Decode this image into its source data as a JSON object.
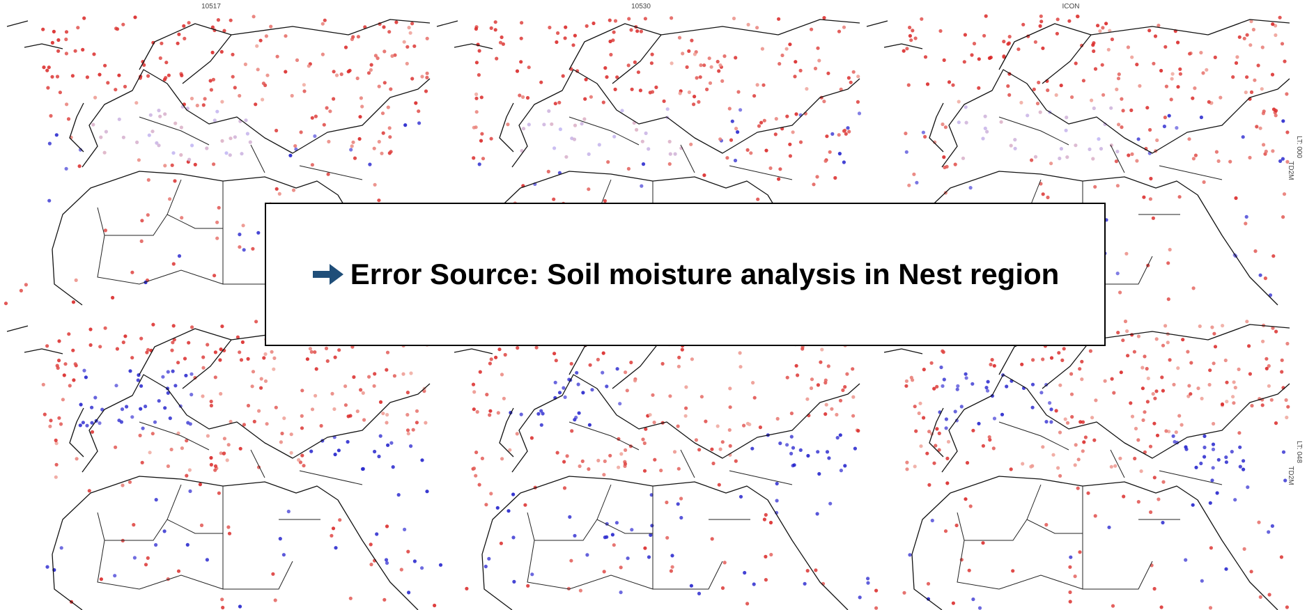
{
  "panels": {
    "titles": [
      "10517",
      "10530",
      "ICON"
    ],
    "rows": [
      {
        "lead_time": "LT: 000",
        "variable": "TD2M"
      },
      {
        "lead_time": "LT: 048",
        "variable": "TD2M"
      }
    ]
  },
  "callout": {
    "text": "Error Source: Soil moisture analysis in Nest region"
  }
}
